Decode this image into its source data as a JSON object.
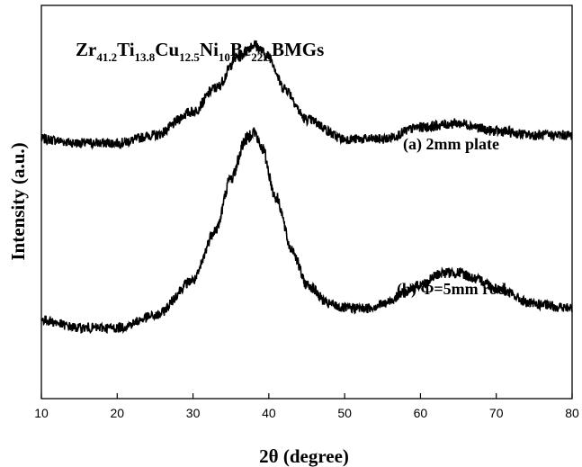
{
  "chart_data": {
    "type": "line",
    "title_parts": [
      {
        "text": "Zr",
        "sub": false
      },
      {
        "text": "41.2",
        "sub": true
      },
      {
        "text": "Ti",
        "sub": false
      },
      {
        "text": "13.8",
        "sub": true
      },
      {
        "text": "Cu",
        "sub": false
      },
      {
        "text": "12.5",
        "sub": true
      },
      {
        "text": "Ni",
        "sub": false
      },
      {
        "text": "10",
        "sub": true
      },
      {
        "text": "Be",
        "sub": false
      },
      {
        "text": "22.5",
        "sub": true
      },
      {
        "text": "BMGs",
        "sub": false
      }
    ],
    "xlabel": "2θ (degree)",
    "ylabel": "Intensity (a.u.)",
    "xlim": [
      10,
      80
    ],
    "xticks": [
      10,
      20,
      30,
      40,
      50,
      60,
      70,
      80
    ],
    "y_ticks_labeled": false,
    "grid": false,
    "series": [
      {
        "name": "(a) 2mm plate",
        "x": [
          10,
          15,
          20,
          25,
          30,
          33,
          36,
          38,
          40,
          42,
          45,
          50,
          55,
          60,
          65,
          70,
          75,
          80
        ],
        "y": [
          0.66,
          0.65,
          0.65,
          0.67,
          0.73,
          0.79,
          0.87,
          0.9,
          0.87,
          0.79,
          0.71,
          0.66,
          0.66,
          0.69,
          0.7,
          0.68,
          0.67,
          0.67
        ]
      },
      {
        "name": "(b) Φ=5mm rod",
        "x": [
          10,
          15,
          20,
          25,
          30,
          33,
          35,
          37,
          38,
          39,
          41,
          43,
          45,
          48,
          50,
          53,
          55,
          58,
          60,
          63,
          65,
          68,
          70,
          75,
          80
        ],
        "y": [
          0.2,
          0.18,
          0.18,
          0.21,
          0.3,
          0.43,
          0.56,
          0.66,
          0.68,
          0.64,
          0.51,
          0.38,
          0.29,
          0.24,
          0.23,
          0.23,
          0.24,
          0.27,
          0.29,
          0.32,
          0.32,
          0.3,
          0.28,
          0.24,
          0.23
        ]
      }
    ],
    "annotations": [
      "(a) 2mm plate",
      "(b) Φ=5mm rod"
    ]
  }
}
